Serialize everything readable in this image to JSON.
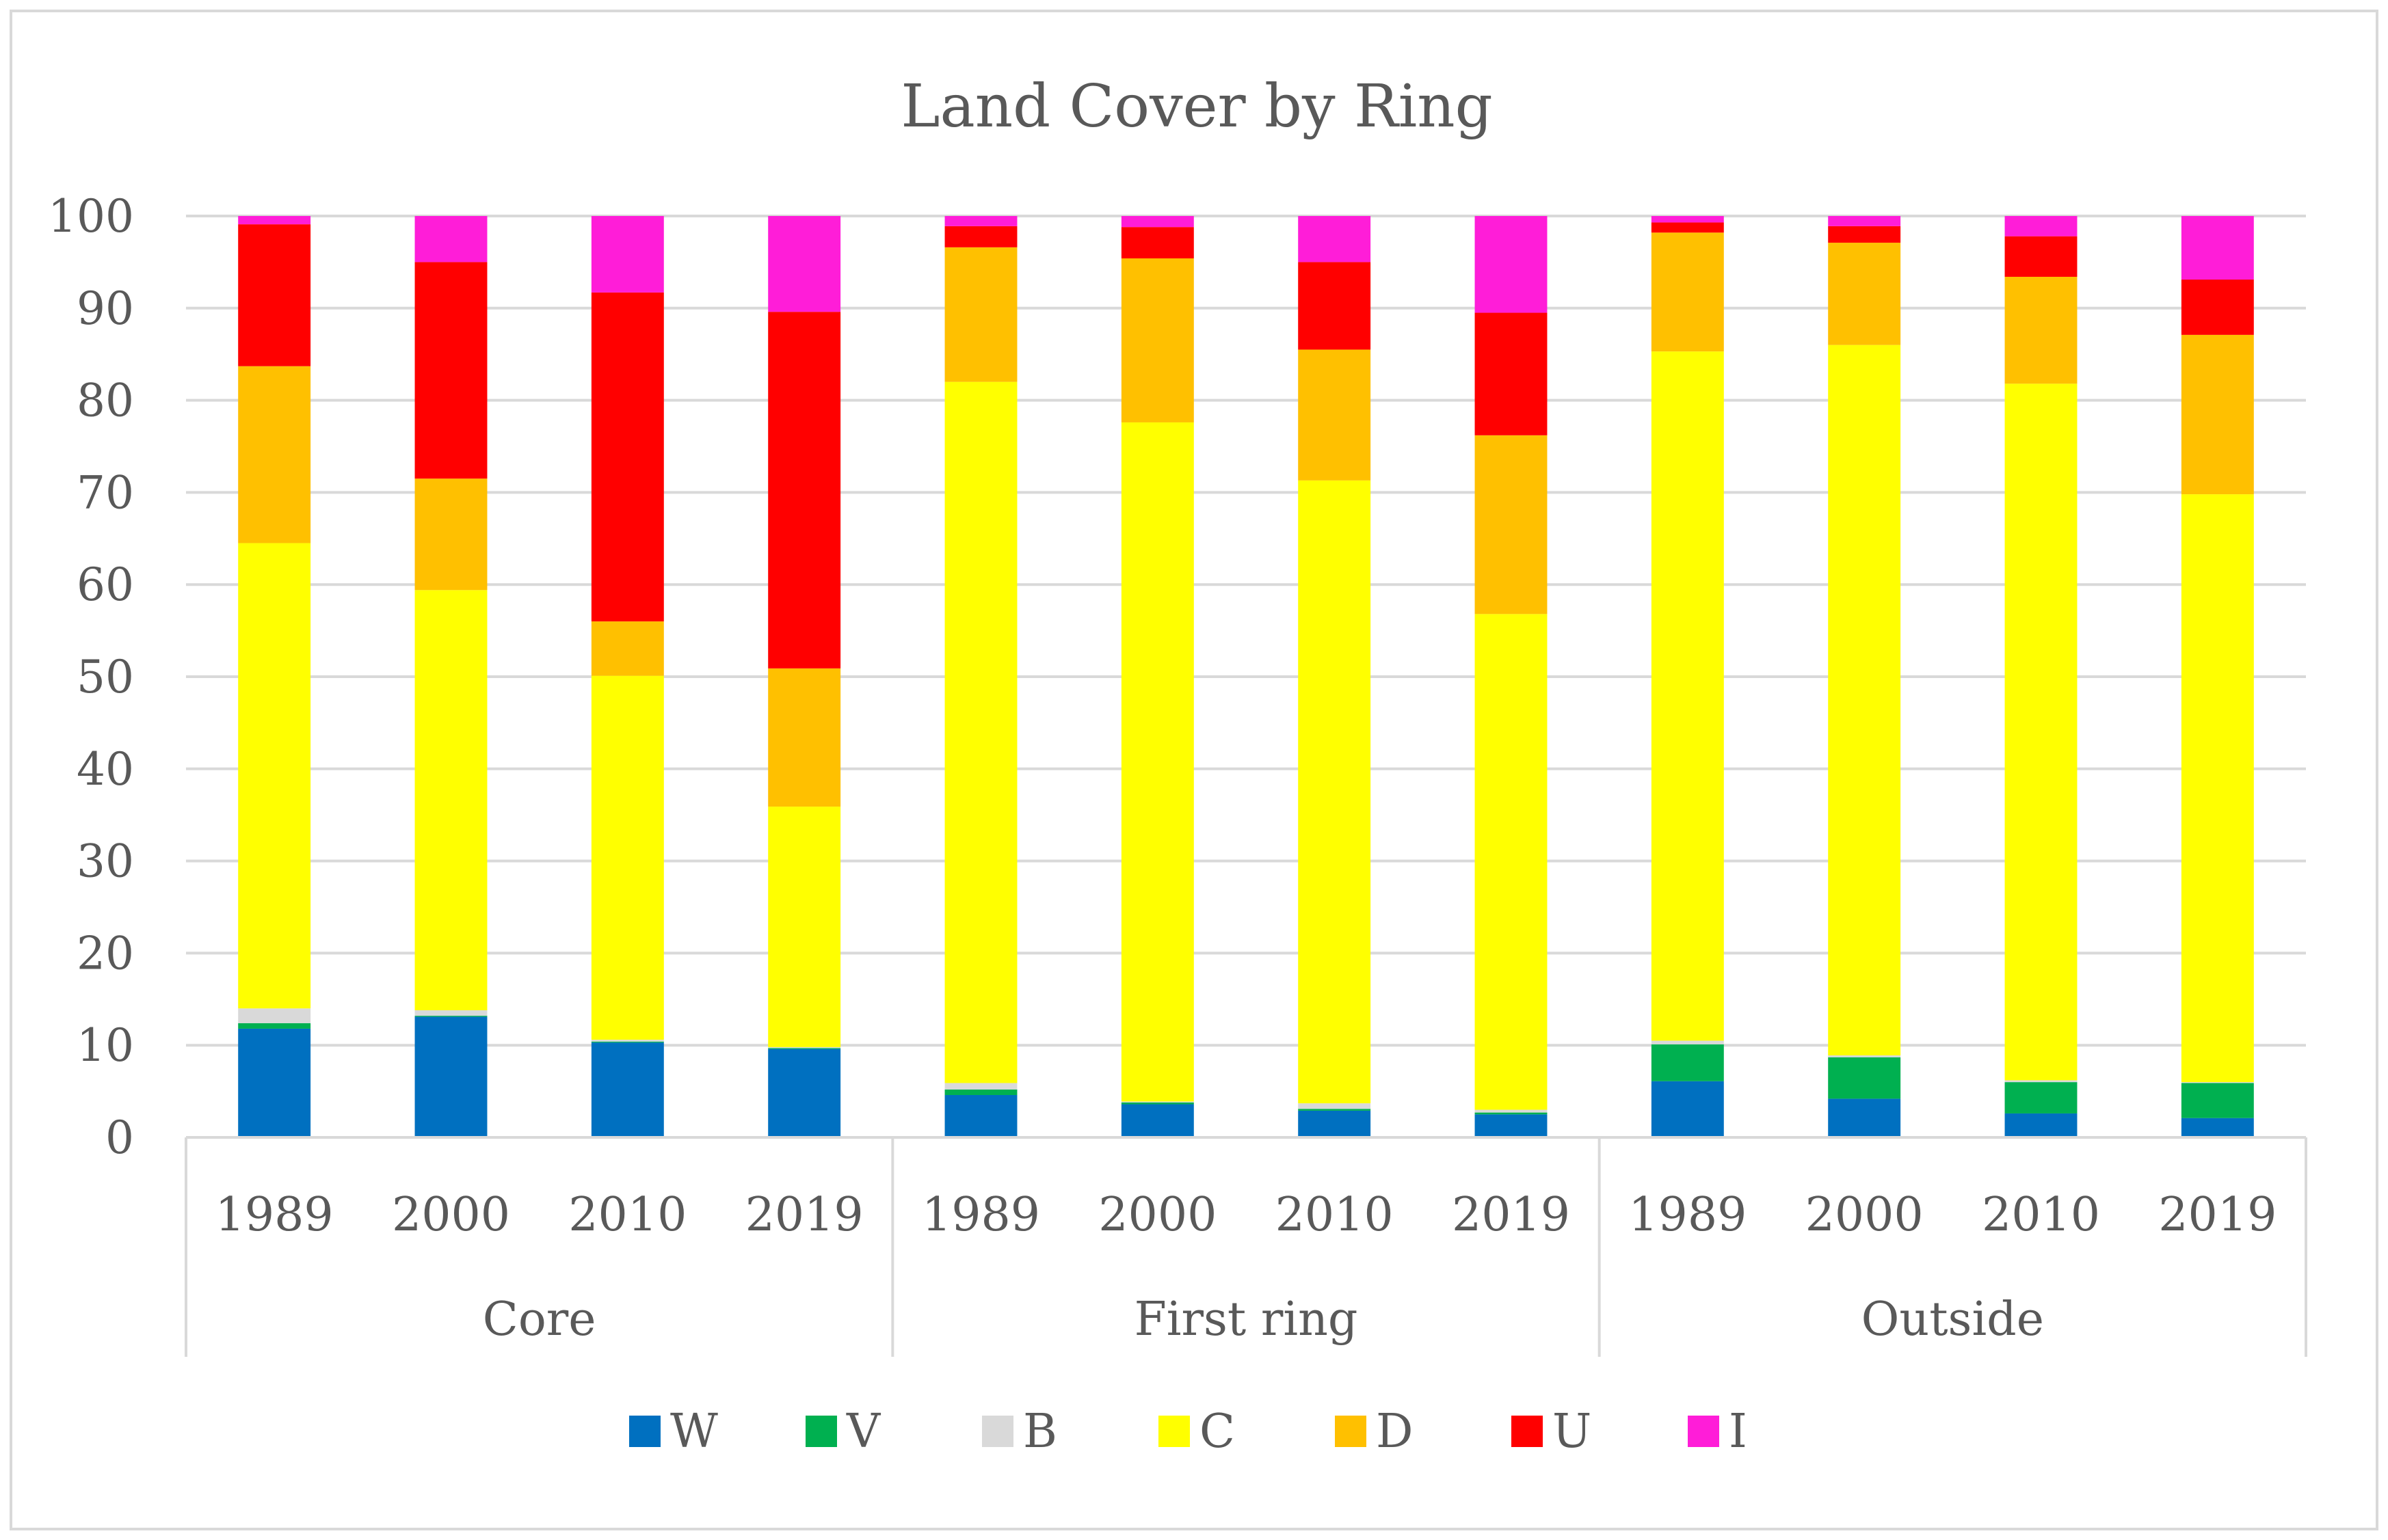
{
  "chart_data": {
    "type": "bar",
    "stacked": true,
    "title": "Land Cover by Ring",
    "xlabel": "",
    "ylabel": "",
    "ylim": [
      0,
      100
    ],
    "yticks": [
      0,
      10,
      20,
      30,
      40,
      50,
      60,
      70,
      80,
      90,
      100
    ],
    "grid": true,
    "legend_position": "bottom",
    "groups": [
      {
        "label": "Core",
        "years": [
          "1989",
          "2000",
          "2010",
          "2019"
        ]
      },
      {
        "label": "First ring",
        "years": [
          "1989",
          "2000",
          "2010",
          "2019"
        ]
      },
      {
        "label": "Outside",
        "years": [
          "1989",
          "2000",
          "2010",
          "2019"
        ]
      }
    ],
    "categories": [
      "Core 1989",
      "Core 2000",
      "Core 2010",
      "Core 2019",
      "First ring 1989",
      "First ring 2000",
      "First ring 2010",
      "First ring 2019",
      "Outside 1989",
      "Outside 2000",
      "Outside 2010",
      "Outside 2019"
    ],
    "series": [
      {
        "name": "W",
        "color": "#0070C0",
        "values": [
          11.8,
          13.1,
          10.3,
          9.6,
          4.6,
          3.6,
          2.9,
          2.5,
          6.1,
          4.2,
          2.6,
          2.1
        ]
      },
      {
        "name": "V",
        "color": "#00B050",
        "values": [
          0.6,
          0.1,
          0.1,
          0.1,
          0.6,
          0.2,
          0.2,
          0.2,
          4.0,
          4.5,
          3.4,
          3.8
        ]
      },
      {
        "name": "B",
        "color": "#D9D9D9",
        "values": [
          1.6,
          0.6,
          0.2,
          0.1,
          0.7,
          0.1,
          0.6,
          0.3,
          0.4,
          0.2,
          0.2,
          0.1
        ]
      },
      {
        "name": "C",
        "color": "#FFFF00",
        "values": [
          50.5,
          45.6,
          39.5,
          26.1,
          76.1,
          73.7,
          67.6,
          53.8,
          74.8,
          77.1,
          75.6,
          63.8
        ]
      },
      {
        "name": "D",
        "color": "#FFC000",
        "values": [
          19.2,
          12.1,
          5.9,
          15.0,
          14.6,
          17.8,
          14.2,
          19.4,
          12.9,
          11.1,
          11.6,
          17.3
        ]
      },
      {
        "name": "U",
        "color": "#FF0000",
        "values": [
          15.4,
          23.5,
          35.7,
          38.7,
          2.3,
          3.4,
          9.5,
          13.3,
          1.1,
          1.8,
          4.4,
          6.0
        ]
      },
      {
        "name": "I",
        "color": "#FF1DD8",
        "values": [
          0.9,
          5.0,
          8.3,
          10.4,
          1.1,
          1.2,
          5.0,
          10.5,
          0.7,
          1.1,
          2.2,
          6.9
        ]
      }
    ]
  }
}
